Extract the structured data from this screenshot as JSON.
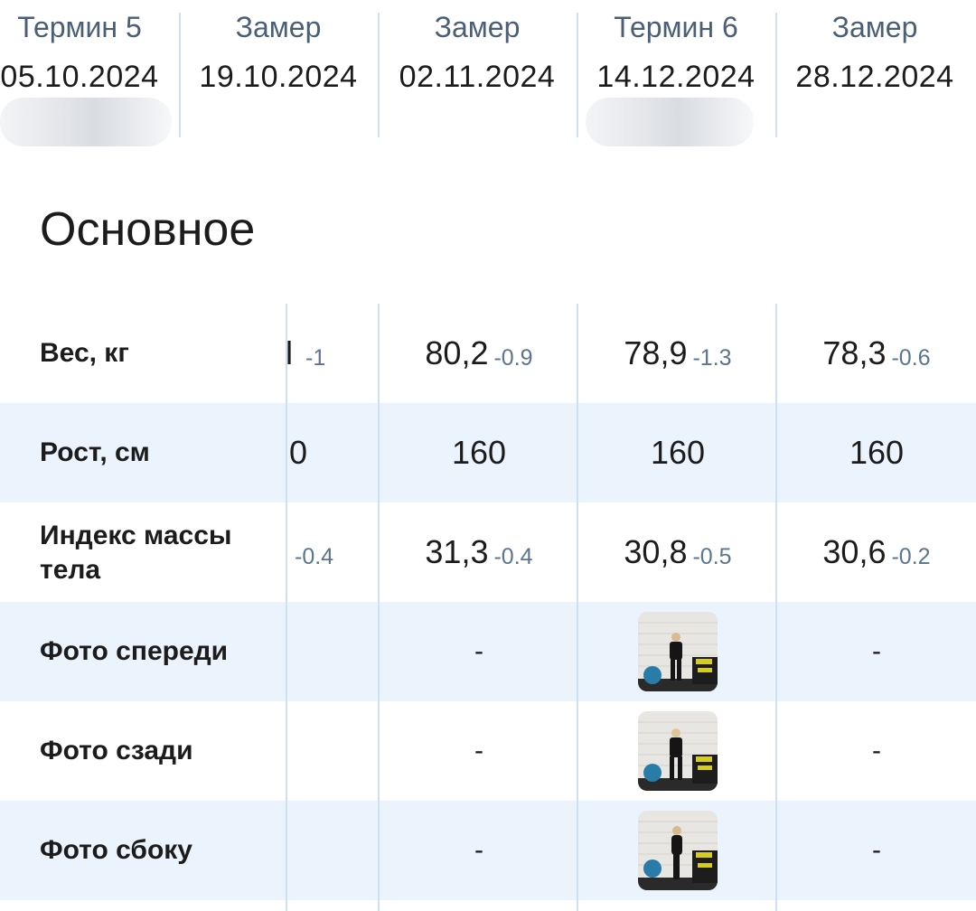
{
  "header": {
    "columns": [
      {
        "label": "Термин 5",
        "date": "05.10.2024"
      },
      {
        "label": "Замер",
        "date": "19.10.2024"
      },
      {
        "label": "Замер",
        "date": "02.11.2024"
      },
      {
        "label": "Термин 6",
        "date": "14.12.2024"
      },
      {
        "label": "Замер",
        "date": "28.12.2024"
      }
    ]
  },
  "section": {
    "title": "Основное"
  },
  "rows": [
    {
      "label": "Вес, кг",
      "partial_value": "l",
      "partial_delta": "-1",
      "cells": [
        {
          "value": "80,2",
          "delta": "-0.9"
        },
        {
          "value": "78,9",
          "delta": "-1.3"
        },
        {
          "value": "78,3",
          "delta": "-0.6"
        }
      ]
    },
    {
      "label": "Рост, см",
      "partial_value": "0",
      "cells": [
        {
          "value": "160"
        },
        {
          "value": "160"
        },
        {
          "value": "160"
        }
      ]
    },
    {
      "label_line1": "Индекс массы",
      "label_line2": "тела",
      "partial_delta": "-0.4",
      "cells": [
        {
          "value": "31,3",
          "delta": "-0.4"
        },
        {
          "value": "30,8",
          "delta": "-0.5"
        },
        {
          "value": "30,6",
          "delta": "-0.2"
        }
      ]
    },
    {
      "label": "Фото спереди",
      "cells": [
        {
          "value": "-"
        },
        {
          "photo": "front-photo"
        },
        {
          "value": "-"
        }
      ]
    },
    {
      "label": "Фото сзади",
      "cells": [
        {
          "value": "-"
        },
        {
          "photo": "back-photo"
        },
        {
          "value": "-"
        }
      ]
    },
    {
      "label": "Фото сбоку",
      "cells": [
        {
          "value": "-"
        },
        {
          "photo": "side-photo"
        },
        {
          "value": "-"
        }
      ]
    }
  ],
  "colors": {
    "accent": "#4a5e76",
    "row_alt": "#ebf4fd",
    "divider": "#cfe0f1",
    "delta": "#5b7490"
  }
}
